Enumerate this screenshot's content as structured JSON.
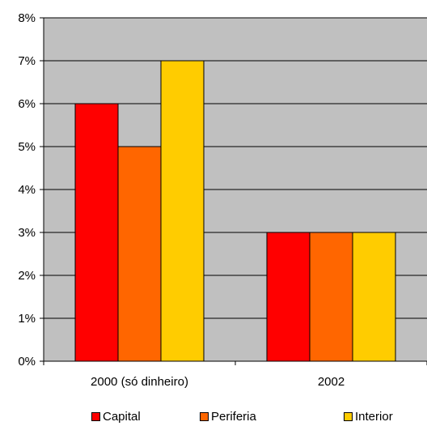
{
  "chart_data": {
    "type": "bar",
    "categories": [
      "2000 (só dinheiro)",
      "2002"
    ],
    "series": [
      {
        "name": "Capital",
        "values": [
          6,
          3
        ],
        "color": "#ff0000"
      },
      {
        "name": "Periferia",
        "values": [
          5,
          3
        ],
        "color": "#ff6600"
      },
      {
        "name": "Interior",
        "values": [
          7,
          3
        ],
        "color": "#ffcc00"
      }
    ],
    "y_ticks": [
      "0%",
      "1%",
      "2%",
      "3%",
      "4%",
      "5%",
      "6%",
      "7%",
      "8%"
    ],
    "ylim": [
      0,
      8
    ],
    "unit": "%",
    "grid": true,
    "legend_position": "bottom",
    "plot_background": "#c0c0c0",
    "title": "",
    "xlabel": "",
    "ylabel": ""
  }
}
